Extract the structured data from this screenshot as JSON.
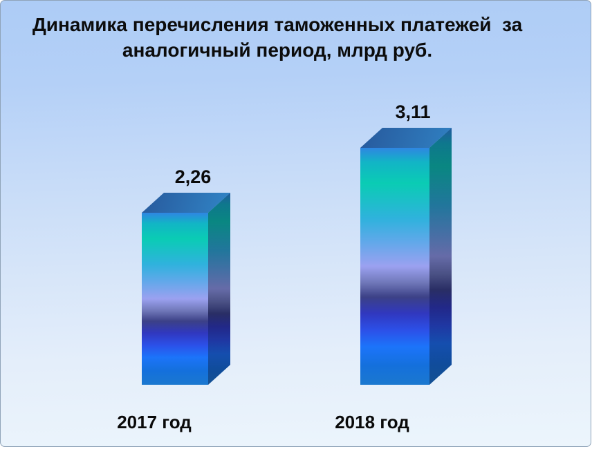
{
  "header": {
    "title_lines": [
      "Динамика перечисления таможенных платежей  за",
      "аналогичный период, млрд руб."
    ]
  },
  "chart_data": {
    "type": "bar",
    "title": "Динамика перечисления таможенных платежей  за аналогичный период, млрд руб.",
    "categories": [
      "2017 год",
      "2018 год"
    ],
    "values": [
      2.26,
      3.11
    ],
    "value_labels": [
      "2,26",
      "3,11"
    ],
    "xlabel": "",
    "ylabel": "млрд руб.",
    "ylim": [
      0,
      3.5
    ],
    "grid": false,
    "legend_position": "none",
    "bar_style": "3d-box-vertical-gradient",
    "style": {
      "title_color": "#0c0c0c",
      "label_color": "#0a0a0a",
      "background_top": "#adccf6",
      "background_bottom": "#ecf5fc",
      "slide_border": "#8fa3b8",
      "bar_gradient": [
        [
          "0%",
          "#2f86e2"
        ],
        [
          "6%",
          "#12b4c6"
        ],
        [
          "15%",
          "#0accb4"
        ],
        [
          "30%",
          "#2fb2dd"
        ],
        [
          "40%",
          "#62a8ea"
        ],
        [
          "50%",
          "#9ba1f0"
        ],
        [
          "57%",
          "#6f77b8"
        ],
        [
          "63%",
          "#3c4187"
        ],
        [
          "70%",
          "#3038c0"
        ],
        [
          "77%",
          "#2c50e8"
        ],
        [
          "84%",
          "#1c74fa"
        ],
        [
          "92%",
          "#1470dc"
        ],
        [
          "100%",
          "#1b78cf"
        ]
      ],
      "top_face_gradient": [
        "#27599c",
        "#379fe0"
      ],
      "side_shade": "rgba(8,12,40,0.36)"
    }
  }
}
